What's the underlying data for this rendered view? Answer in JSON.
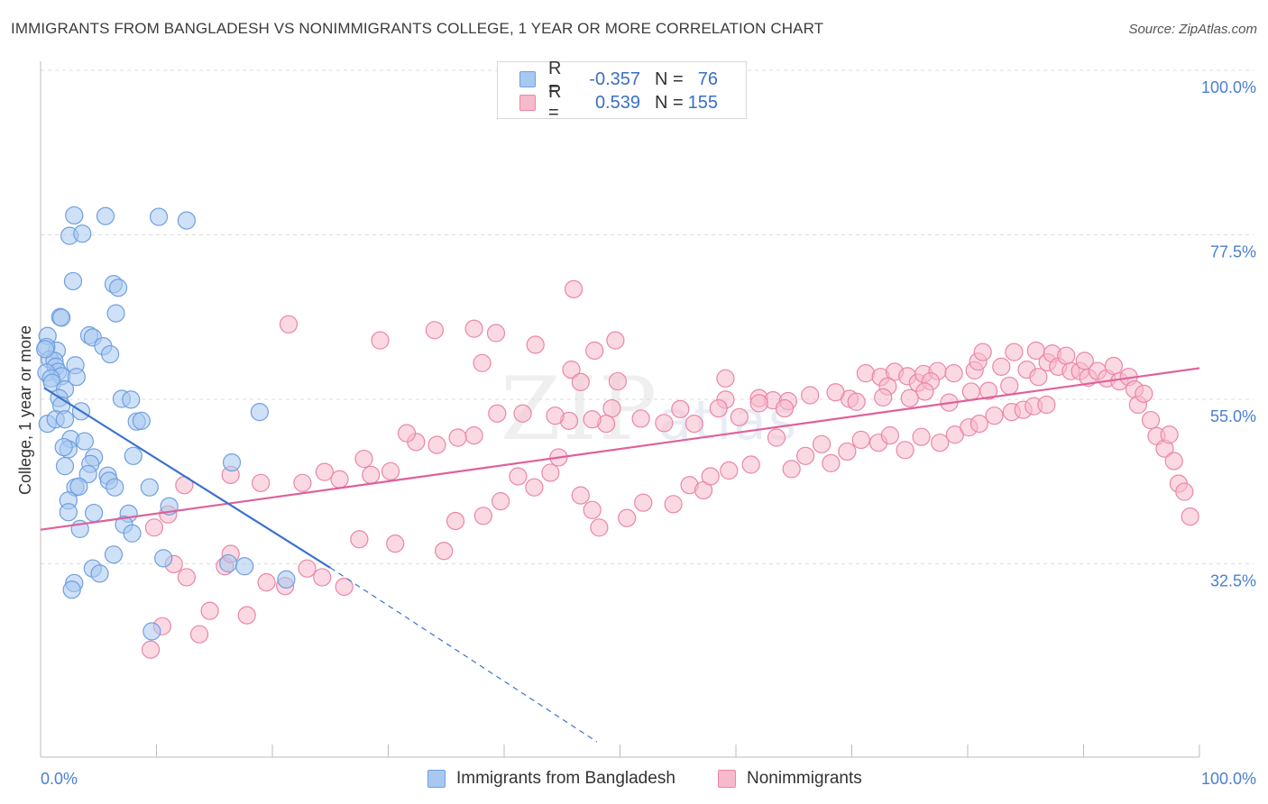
{
  "title": "IMMIGRANTS FROM BANGLADESH VS NONIMMIGRANTS COLLEGE, 1 YEAR OR MORE CORRELATION CHART",
  "source": "Source: ZipAtlas.com",
  "watermark": {
    "zip": "ZIP",
    "atlas": "atlas"
  },
  "legend": {
    "rows": [
      {
        "r_label": "R =",
        "r_value": "-0.357",
        "n_label": "N =",
        "n_value": "76",
        "color": "#a8c8f0",
        "border": "#6f9fe0"
      },
      {
        "r_label": "R =",
        "r_value": "0.539",
        "n_label": "N =",
        "n_value": "155",
        "color": "#f7b9cc",
        "border": "#ea86a6"
      }
    ]
  },
  "bottom_legend": [
    {
      "label": "Immigrants from Bangladesh",
      "color": "#a8c8f0",
      "border": "#6f9fe0"
    },
    {
      "label": "Nonimmigrants",
      "color": "#f7b9cc",
      "border": "#ea86a6"
    }
  ],
  "chart_data": {
    "type": "scatter",
    "xlabel": "",
    "ylabel": "College, 1 year or more",
    "xlim": [
      0,
      100
    ],
    "ylim": [
      10,
      100
    ],
    "x_tick_labels": [
      "0.0%",
      "100.0%"
    ],
    "y_ticks": [
      {
        "value": 100,
        "label": "100.0%"
      },
      {
        "value": 77.5,
        "label": "77.5%"
      },
      {
        "value": 55,
        "label": "55.0%"
      },
      {
        "value": 32.5,
        "label": "32.5%"
      }
    ],
    "grid": true,
    "series": [
      {
        "name": "Immigrants from Bangladesh",
        "color": "#a8c8f0",
        "stroke": "#6f9fe0",
        "trend": {
          "x0": 0.3,
          "y0": 58.9,
          "x1": 25.0,
          "y1": 34.3,
          "dash_to_x": 48.0,
          "dash_to_y": 10.5,
          "color": "#3a73cf"
        },
        "points": [
          [
            2.9,
            82.5
          ],
          [
            5.6,
            82.4
          ],
          [
            10.2,
            82.3
          ],
          [
            12.6,
            81.8
          ],
          [
            2.5,
            79.7
          ],
          [
            3.6,
            80.0
          ],
          [
            2.8,
            73.5
          ],
          [
            6.3,
            73.1
          ],
          [
            6.7,
            72.6
          ],
          [
            1.7,
            68.6
          ],
          [
            1.8,
            68.5
          ],
          [
            6.5,
            69.1
          ],
          [
            4.2,
            66.1
          ],
          [
            4.5,
            65.8
          ],
          [
            0.6,
            66.0
          ],
          [
            5.4,
            64.6
          ],
          [
            1.4,
            64.0
          ],
          [
            0.5,
            64.5
          ],
          [
            6.0,
            63.5
          ],
          [
            0.8,
            62.8
          ],
          [
            1.2,
            62.6
          ],
          [
            1.3,
            61.8
          ],
          [
            3.0,
            62.0
          ],
          [
            1.5,
            61.1
          ],
          [
            0.5,
            61.0
          ],
          [
            1.8,
            60.5
          ],
          [
            0.9,
            60.2
          ],
          [
            3.1,
            60.4
          ],
          [
            1.0,
            59.6
          ],
          [
            2.1,
            58.7
          ],
          [
            1.6,
            57.5
          ],
          [
            1.8,
            56.5
          ],
          [
            7.0,
            57.4
          ],
          [
            7.8,
            57.3
          ],
          [
            3.5,
            55.7
          ],
          [
            18.9,
            55.6
          ],
          [
            0.6,
            54.0
          ],
          [
            1.3,
            54.6
          ],
          [
            2.1,
            54.6
          ],
          [
            8.3,
            54.3
          ],
          [
            8.7,
            54.4
          ],
          [
            2.6,
            51.9
          ],
          [
            3.8,
            51.6
          ],
          [
            2.4,
            50.5
          ],
          [
            2.0,
            50.8
          ],
          [
            4.6,
            49.4
          ],
          [
            8.0,
            49.6
          ],
          [
            16.5,
            48.7
          ],
          [
            4.3,
            48.5
          ],
          [
            2.1,
            48.2
          ],
          [
            4.1,
            47.1
          ],
          [
            5.8,
            46.9
          ],
          [
            5.9,
            46.2
          ],
          [
            6.4,
            45.3
          ],
          [
            3.0,
            45.3
          ],
          [
            3.3,
            45.4
          ],
          [
            9.4,
            45.3
          ],
          [
            2.4,
            43.5
          ],
          [
            11.1,
            42.7
          ],
          [
            2.4,
            41.9
          ],
          [
            4.6,
            41.8
          ],
          [
            7.6,
            41.7
          ],
          [
            3.4,
            39.6
          ],
          [
            7.2,
            40.2
          ],
          [
            7.9,
            39.0
          ],
          [
            10.6,
            35.6
          ],
          [
            16.2,
            34.9
          ],
          [
            17.6,
            34.5
          ],
          [
            4.5,
            34.2
          ],
          [
            5.1,
            33.5
          ],
          [
            2.9,
            32.2
          ],
          [
            2.7,
            31.3
          ],
          [
            21.2,
            32.7
          ],
          [
            9.6,
            25.6
          ],
          [
            6.3,
            36.1
          ],
          [
            0.4,
            64.2
          ]
        ]
      },
      {
        "name": "Nonimmigrants",
        "color": "#f7b9cc",
        "stroke": "#ea86a6",
        "trend": {
          "x0": 0,
          "y0": 39.5,
          "x1": 100,
          "y1": 61.6,
          "color": "#e0609a"
        },
        "points": [
          [
            46.0,
            72.4
          ],
          [
            21.4,
            67.6
          ],
          [
            29.3,
            65.4
          ],
          [
            34.0,
            66.8
          ],
          [
            37.4,
            67.0
          ],
          [
            39.3,
            66.4
          ],
          [
            42.7,
            64.8
          ],
          [
            47.8,
            64.0
          ],
          [
            49.6,
            65.4
          ],
          [
            38.1,
            62.3
          ],
          [
            45.8,
            61.4
          ],
          [
            46.6,
            59.7
          ],
          [
            49.8,
            59.8
          ],
          [
            59.1,
            60.2
          ],
          [
            59.1,
            57.3
          ],
          [
            62.0,
            57.5
          ],
          [
            63.2,
            57.2
          ],
          [
            64.5,
            57.1
          ],
          [
            69.8,
            57.4
          ],
          [
            71.2,
            60.9
          ],
          [
            72.5,
            60.4
          ],
          [
            73.7,
            61.1
          ],
          [
            73.1,
            59.1
          ],
          [
            74.8,
            60.5
          ],
          [
            75.7,
            59.6
          ],
          [
            76.2,
            60.8
          ],
          [
            77.4,
            61.2
          ],
          [
            76.8,
            59.8
          ],
          [
            78.8,
            60.9
          ],
          [
            80.6,
            61.3
          ],
          [
            80.9,
            62.5
          ],
          [
            81.3,
            63.8
          ],
          [
            82.9,
            61.8
          ],
          [
            84.0,
            63.8
          ],
          [
            85.1,
            61.4
          ],
          [
            85.9,
            64.0
          ],
          [
            86.1,
            60.4
          ],
          [
            86.9,
            62.4
          ],
          [
            87.3,
            63.6
          ],
          [
            87.8,
            61.8
          ],
          [
            88.5,
            63.3
          ],
          [
            88.9,
            61.2
          ],
          [
            89.7,
            61.2
          ],
          [
            90.1,
            62.6
          ],
          [
            90.4,
            60.3
          ],
          [
            91.2,
            61.2
          ],
          [
            92.0,
            60.2
          ],
          [
            92.6,
            61.9
          ],
          [
            93.1,
            59.8
          ],
          [
            93.9,
            60.4
          ],
          [
            94.4,
            58.7
          ],
          [
            94.7,
            56.6
          ],
          [
            95.2,
            58.1
          ],
          [
            95.8,
            54.5
          ],
          [
            96.3,
            52.3
          ],
          [
            97.0,
            50.6
          ],
          [
            97.4,
            52.5
          ],
          [
            97.8,
            48.9
          ],
          [
            98.2,
            45.8
          ],
          [
            98.7,
            44.7
          ],
          [
            99.2,
            41.3
          ],
          [
            83.6,
            59.2
          ],
          [
            81.8,
            58.5
          ],
          [
            80.3,
            58.4
          ],
          [
            78.4,
            56.9
          ],
          [
            76.3,
            58.4
          ],
          [
            75.0,
            57.5
          ],
          [
            72.7,
            57.6
          ],
          [
            70.4,
            57.0
          ],
          [
            68.6,
            58.3
          ],
          [
            66.4,
            57.9
          ],
          [
            64.2,
            56.1
          ],
          [
            62.0,
            56.8
          ],
          [
            60.3,
            54.9
          ],
          [
            58.5,
            56.1
          ],
          [
            56.4,
            54.0
          ],
          [
            55.2,
            56.0
          ],
          [
            53.8,
            54.1
          ],
          [
            51.8,
            54.7
          ],
          [
            49.3,
            56.1
          ],
          [
            48.8,
            54.0
          ],
          [
            47.6,
            54.6
          ],
          [
            45.6,
            54.4
          ],
          [
            44.4,
            55.1
          ],
          [
            41.6,
            55.4
          ],
          [
            39.4,
            55.4
          ],
          [
            37.4,
            52.4
          ],
          [
            36.0,
            52.1
          ],
          [
            34.2,
            51.1
          ],
          [
            32.4,
            51.5
          ],
          [
            31.6,
            52.7
          ],
          [
            30.2,
            47.5
          ],
          [
            28.5,
            47.0
          ],
          [
            27.9,
            49.2
          ],
          [
            25.8,
            46.4
          ],
          [
            24.5,
            47.4
          ],
          [
            22.6,
            45.9
          ],
          [
            19.0,
            45.9
          ],
          [
            16.4,
            47.0
          ],
          [
            12.4,
            45.6
          ],
          [
            11.0,
            41.6
          ],
          [
            9.8,
            39.8
          ],
          [
            11.5,
            34.8
          ],
          [
            15.9,
            34.5
          ],
          [
            19.5,
            32.3
          ],
          [
            21.1,
            31.8
          ],
          [
            23.0,
            34.2
          ],
          [
            24.3,
            33.0
          ],
          [
            26.2,
            31.7
          ],
          [
            27.5,
            38.2
          ],
          [
            30.6,
            37.6
          ],
          [
            34.8,
            36.6
          ],
          [
            35.8,
            40.7
          ],
          [
            38.2,
            41.4
          ],
          [
            39.7,
            43.4
          ],
          [
            41.2,
            46.8
          ],
          [
            42.6,
            45.3
          ],
          [
            44.0,
            47.3
          ],
          [
            44.7,
            49.4
          ],
          [
            46.6,
            44.2
          ],
          [
            47.6,
            42.2
          ],
          [
            48.2,
            39.8
          ],
          [
            50.6,
            41.1
          ],
          [
            52.0,
            43.2
          ],
          [
            54.6,
            43.0
          ],
          [
            56.0,
            45.6
          ],
          [
            57.2,
            44.9
          ],
          [
            57.8,
            46.8
          ],
          [
            59.4,
            47.6
          ],
          [
            61.3,
            48.4
          ],
          [
            63.5,
            52.1
          ],
          [
            64.8,
            47.8
          ],
          [
            66.0,
            49.6
          ],
          [
            67.4,
            51.2
          ],
          [
            68.2,
            48.6
          ],
          [
            69.6,
            50.2
          ],
          [
            70.8,
            51.8
          ],
          [
            72.3,
            51.4
          ],
          [
            73.3,
            52.4
          ],
          [
            74.6,
            50.4
          ],
          [
            76.0,
            52.2
          ],
          [
            77.6,
            51.4
          ],
          [
            78.9,
            52.5
          ],
          [
            80.1,
            53.5
          ],
          [
            81.0,
            54.0
          ],
          [
            82.3,
            55.1
          ],
          [
            83.8,
            55.6
          ],
          [
            84.8,
            55.9
          ],
          [
            85.7,
            56.4
          ],
          [
            86.8,
            56.6
          ],
          [
            16.4,
            36.2
          ],
          [
            12.6,
            33.0
          ],
          [
            14.6,
            28.4
          ],
          [
            17.8,
            27.8
          ],
          [
            10.5,
            26.3
          ],
          [
            13.7,
            25.2
          ],
          [
            9.5,
            23.1
          ]
        ]
      }
    ]
  }
}
